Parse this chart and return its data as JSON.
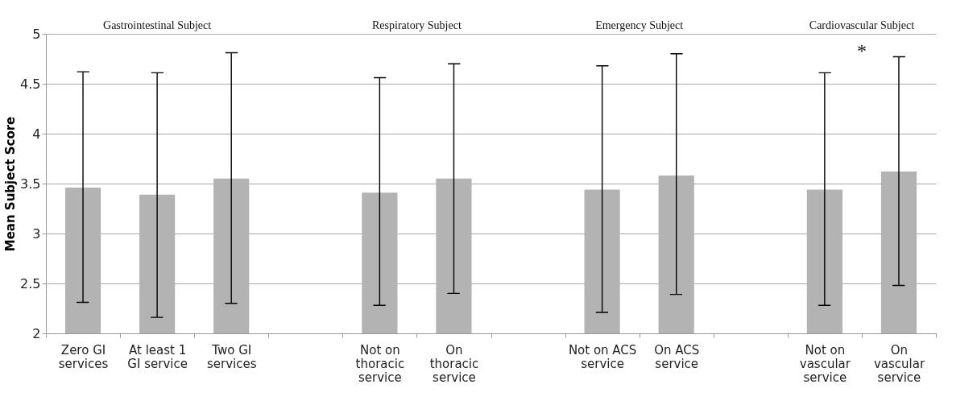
{
  "chart_data": {
    "type": "bar",
    "categories": [
      "Zero GI services",
      "At least 1 GI service",
      "Two GI services",
      null,
      "Not on thoracic service",
      "On thoracic service",
      null,
      "Not on ACS service",
      "On ACS service",
      null,
      "Not on vascular service",
      "On vascular service"
    ],
    "values": [
      3.46,
      3.39,
      3.55,
      null,
      3.41,
      3.55,
      null,
      3.44,
      3.58,
      null,
      3.44,
      3.62
    ],
    "errors": [
      [
        2.31,
        4.62
      ],
      [
        2.16,
        4.61
      ],
      [
        2.3,
        4.81
      ],
      null,
      [
        2.28,
        4.56
      ],
      [
        2.4,
        4.7
      ],
      null,
      [
        2.21,
        4.68
      ],
      [
        2.39,
        4.8
      ],
      null,
      [
        2.28,
        4.61
      ],
      [
        2.48,
        4.77
      ]
    ],
    "color": "#b3b3b3",
    "ylabel": "Mean Subject Score",
    "ylim": [
      2,
      5
    ],
    "yticks": [
      2,
      2.5,
      3,
      3.5,
      4,
      4.5,
      5
    ],
    "grid": "y",
    "annotations": [
      "Gastrointestinal Subject",
      "Respiratory Subject",
      "Emergency Subject",
      "Cardiovascular Subject",
      "*"
    ]
  }
}
